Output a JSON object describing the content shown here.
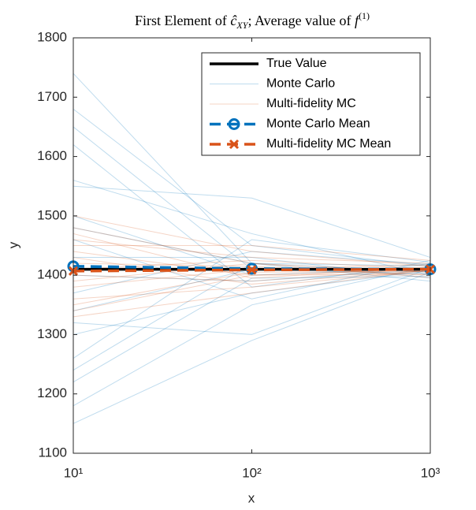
{
  "chart_data": {
    "type": "line",
    "title": [
      "First Element of ",
      "ĉ",
      "XY",
      "; Average value of ",
      "f",
      "(1)"
    ],
    "x_label": "x",
    "y_label": "y",
    "x": [
      10,
      100,
      1000
    ],
    "xscale": "log",
    "xlim": [
      10,
      1000
    ],
    "xticks": [
      {
        "value": 10,
        "label": "10¹"
      },
      {
        "value": 100,
        "label": "10²"
      },
      {
        "value": 1000,
        "label": "10³"
      }
    ],
    "ylim": [
      1100,
      1800
    ],
    "yticks": [
      1100,
      1200,
      1300,
      1400,
      1500,
      1600,
      1700,
      1800
    ],
    "legend_location": "northeast",
    "series": [
      {
        "name": "True Value",
        "color": "#000000",
        "style": "solid",
        "values": [
          1410,
          1410,
          1410
        ]
      },
      {
        "name": "Monte Carlo",
        "color": "#0072bd",
        "style": "faint",
        "trials": [
          [
            1740,
            1420,
            1405
          ],
          [
            1680,
            1450,
            1415
          ],
          [
            1620,
            1380,
            1420
          ],
          [
            1560,
            1470,
            1400
          ],
          [
            1500,
            1400,
            1412
          ],
          [
            1460,
            1360,
            1425
          ],
          [
            1430,
            1430,
            1395
          ],
          [
            1400,
            1390,
            1410
          ],
          [
            1370,
            1440,
            1418
          ],
          [
            1340,
            1410,
            1402
          ],
          [
            1300,
            1370,
            1408
          ],
          [
            1260,
            1460,
            1422
          ],
          [
            1220,
            1395,
            1398
          ],
          [
            1180,
            1350,
            1415
          ],
          [
            1150,
            1290,
            1405
          ],
          [
            1550,
            1530,
            1430
          ],
          [
            1480,
            1420,
            1390
          ],
          [
            1320,
            1300,
            1412
          ],
          [
            1650,
            1410,
            1409
          ],
          [
            1240,
            1420,
            1416
          ]
        ]
      },
      {
        "name": "Multi-fidelity MC",
        "color": "#d95319",
        "style": "faint",
        "trials": [
          [
            1500,
            1440,
            1415
          ],
          [
            1480,
            1420,
            1405
          ],
          [
            1460,
            1430,
            1420
          ],
          [
            1440,
            1400,
            1410
          ],
          [
            1420,
            1415,
            1400
          ],
          [
            1400,
            1390,
            1412
          ],
          [
            1380,
            1410,
            1418
          ],
          [
            1360,
            1380,
            1408
          ],
          [
            1340,
            1400,
            1402
          ],
          [
            1330,
            1370,
            1410
          ],
          [
            1450,
            1450,
            1425
          ],
          [
            1390,
            1420,
            1396
          ],
          [
            1470,
            1395,
            1414
          ],
          [
            1350,
            1405,
            1406
          ],
          [
            1410,
            1425,
            1411
          ],
          [
            1430,
            1385,
            1409
          ]
        ]
      },
      {
        "name": "Monte Carlo Mean",
        "color": "#0072bd",
        "style": "dashed",
        "marker": "circle",
        "values": [
          1415,
          1411,
          1410
        ]
      },
      {
        "name": "Multi-fidelity MC Mean",
        "color": "#d95319",
        "style": "dashed",
        "marker": "x",
        "values": [
          1407,
          1409,
          1410
        ]
      }
    ]
  }
}
